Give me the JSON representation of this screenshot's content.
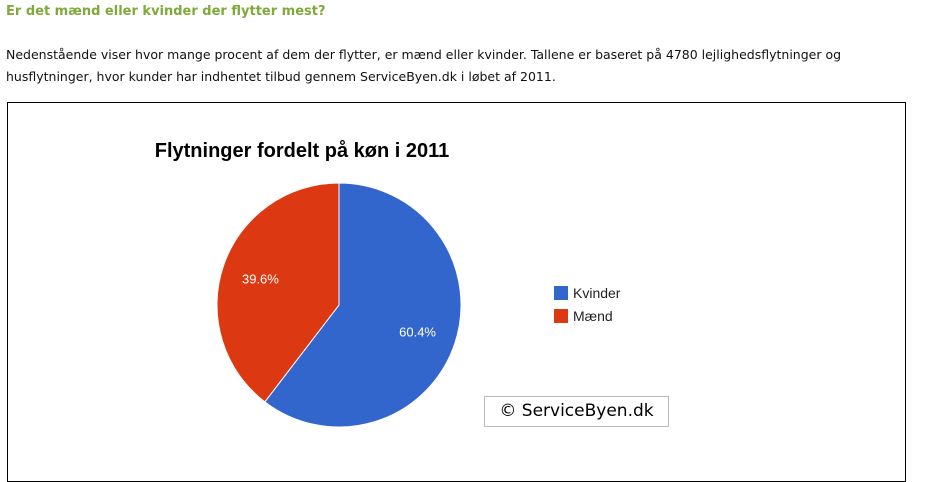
{
  "heading": "Er det mænd eller kvinder der flytter mest?",
  "intro": "Nedenstående viser hvor mange procent af dem der flytter, er mænd eller kvinder. Tallene er baseret på 4780 lejlighedsflytninger og husflytninger, hvor kunder har indhentet tilbud gennem ServiceByen.dk i løbet af 2011.",
  "copyright": "© ServiceByen.dk",
  "chart_data": {
    "type": "pie",
    "title": "Flytninger fordelt på køn i 2011",
    "categories": [
      "Kvinder",
      "Mænd"
    ],
    "values": [
      60.4,
      39.6
    ],
    "labels": [
      "60.4%",
      "39.6%"
    ],
    "colors": [
      "#3366cc",
      "#dc3912"
    ],
    "legend": "right"
  }
}
